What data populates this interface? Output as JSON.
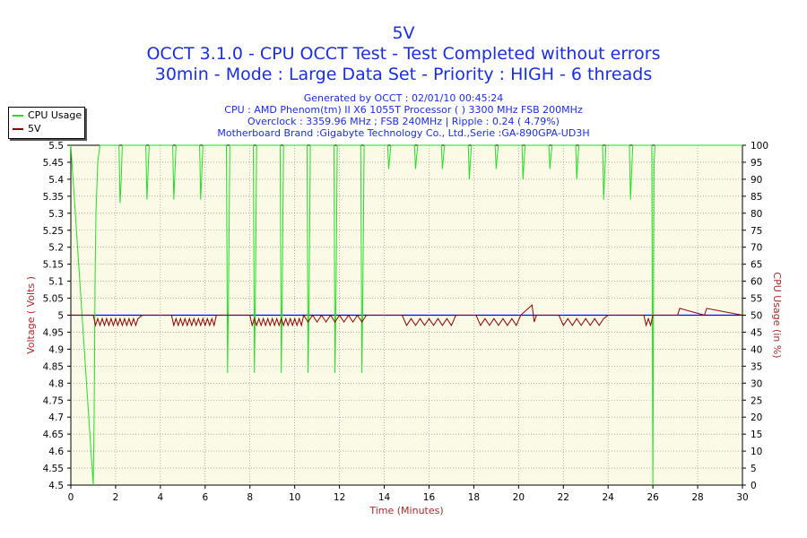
{
  "header": {
    "title": "5V",
    "line2": "OCCT 3.1.0 - CPU OCCT Test - Test Completed without errors",
    "line3": "30min - Mode : Large Data Set - Priority : HIGH - 6 threads",
    "generated": "Generated by OCCT : 02/01/10 00:45:24",
    "cpu": "CPU : AMD Phenom(tm) II X6 1055T Processor (  ) 3300 MHz FSB 200MHz",
    "overclock": "Overclock : 3359.96 MHz ; FSB 240MHz | Ripple : 0.24 ( 4.79%)",
    "motherboard": "Motherboard Brand :Gigabyte Technology Co., Ltd.,Serie :GA-890GPA-UD3H"
  },
  "legend": [
    {
      "label": "CPU Usage",
      "color": "#22dd22"
    },
    {
      "label": "5V",
      "color": "#8b0000"
    }
  ],
  "chart_data": {
    "type": "line",
    "xlabel": "Time (Minutes)",
    "ylabel": "Voltage ( Volts )",
    "y2label": "CPU Usage (in %)",
    "xlim": [
      0,
      30
    ],
    "ylim": [
      4.5,
      5.5
    ],
    "y2lim": [
      0,
      100
    ],
    "x_ticks": [
      "0",
      "2",
      "4",
      "6",
      "8",
      "10",
      "12",
      "14",
      "16",
      "18",
      "20",
      "22",
      "24",
      "26",
      "28",
      "30"
    ],
    "y_ticks": [
      "4.5",
      "4.55",
      "4.6",
      "4.65",
      "4.7",
      "4.75",
      "4.8",
      "4.85",
      "4.9",
      "4.95",
      "5",
      "5.05",
      "5.1",
      "5.15",
      "5.2",
      "5.25",
      "5.3",
      "5.35",
      "5.4",
      "5.45",
      "5.5"
    ],
    "y2_ticks": [
      "0",
      "5",
      "10",
      "15",
      "20",
      "25",
      "30",
      "35",
      "40",
      "45",
      "50",
      "55",
      "60",
      "65",
      "70",
      "75",
      "80",
      "85",
      "90",
      "95",
      "100"
    ],
    "grid": true,
    "legend_position": "top-left",
    "colors": {
      "background": "#fafae6",
      "grid": "#808080",
      "cpu": "#22dd22",
      "voltage": "#8b0000",
      "voltage_line": "#0000ff",
      "title": "#1a2ee0",
      "axis_label": "#a52a2a"
    },
    "series": [
      {
        "name": "CPU Usage",
        "axis": "right",
        "x": [
          0,
          1.0,
          1.04,
          1.08,
          1.12,
          1.2,
          1.3,
          1.4,
          2.15,
          2.2,
          2.25,
          2.3,
          2.35,
          3.35,
          3.4,
          3.45,
          3.5,
          4.55,
          4.6,
          4.65,
          4.7,
          5.75,
          5.8,
          5.85,
          5.9,
          6.95,
          7.0,
          7.05,
          7.1,
          8.15,
          8.2,
          8.25,
          8.3,
          9.35,
          9.4,
          9.45,
          9.5,
          10.55,
          10.6,
          10.65,
          10.7,
          11.75,
          11.8,
          11.85,
          11.9,
          12.95,
          13.0,
          13.05,
          13.1,
          14.15,
          14.2,
          14.25,
          14.3,
          15.35,
          15.4,
          15.45,
          15.5,
          16.55,
          16.6,
          16.65,
          16.7,
          17.75,
          17.8,
          17.85,
          17.9,
          18.95,
          19.0,
          19.05,
          19.1,
          20.15,
          20.2,
          20.25,
          20.3,
          21.35,
          21.4,
          21.45,
          21.5,
          22.55,
          22.6,
          22.65,
          22.7,
          23.75,
          23.8,
          23.85,
          23.9,
          24.95,
          25.0,
          25.05,
          25.1,
          25.95,
          26.0,
          26.05,
          26.1,
          26.3,
          30
        ],
        "values": [
          100,
          0,
          20,
          60,
          80,
          95,
          100,
          100,
          100,
          83,
          90,
          100,
          100,
          100,
          84,
          92,
          100,
          100,
          84,
          92,
          100,
          100,
          84,
          92,
          100,
          100,
          33,
          60,
          100,
          100,
          33,
          60,
          100,
          100,
          33,
          60,
          100,
          100,
          33,
          60,
          100,
          100,
          33,
          60,
          100,
          100,
          33,
          60,
          100,
          100,
          93,
          97,
          100,
          100,
          93,
          97,
          100,
          100,
          93,
          97,
          100,
          100,
          90,
          96,
          100,
          100,
          93,
          97,
          100,
          100,
          90,
          96,
          100,
          100,
          93,
          97,
          100,
          100,
          90,
          96,
          100,
          100,
          84,
          92,
          100,
          100,
          84,
          92,
          100,
          100,
          0,
          95,
          100,
          100,
          100
        ]
      },
      {
        "name": "5V",
        "axis": "left",
        "x": [
          0,
          1.0,
          1.1,
          1.2,
          1.3,
          1.4,
          1.5,
          1.6,
          1.7,
          1.8,
          1.9,
          2.0,
          2.1,
          2.2,
          2.3,
          2.4,
          2.5,
          2.6,
          2.7,
          2.8,
          2.9,
          3.0,
          3.2,
          4.5,
          4.6,
          4.7,
          4.8,
          4.9,
          5.0,
          5.1,
          5.2,
          5.3,
          5.4,
          5.5,
          5.6,
          5.7,
          5.8,
          5.9,
          6.0,
          6.1,
          6.2,
          6.3,
          6.4,
          6.5,
          8.0,
          8.1,
          8.2,
          8.3,
          8.4,
          8.5,
          8.6,
          8.7,
          8.8,
          8.9,
          9.0,
          9.1,
          9.2,
          9.3,
          9.4,
          9.5,
          9.6,
          9.7,
          9.8,
          9.9,
          10.0,
          10.1,
          10.2,
          10.3,
          10.4,
          10.6,
          10.8,
          11.0,
          11.2,
          11.4,
          11.6,
          11.8,
          12.0,
          12.2,
          12.4,
          12.6,
          12.8,
          13.0,
          13.2,
          14.8,
          15.0,
          15.2,
          15.4,
          15.6,
          15.8,
          16.0,
          16.2,
          16.4,
          16.6,
          16.8,
          17.0,
          17.2,
          18.1,
          18.3,
          18.5,
          18.7,
          18.9,
          19.1,
          19.3,
          19.5,
          19.7,
          19.9,
          20.1,
          20.6,
          20.7,
          20.8,
          21.8,
          22.0,
          22.2,
          22.4,
          22.6,
          22.8,
          23.0,
          23.2,
          23.4,
          23.6,
          23.8,
          24.0,
          25.6,
          25.7,
          25.8,
          25.9,
          26.0,
          27.1,
          27.2,
          28.3,
          28.4,
          30
        ],
        "values": [
          5.0,
          5.0,
          4.97,
          4.99,
          4.97,
          4.99,
          4.97,
          4.99,
          4.97,
          4.99,
          4.97,
          4.99,
          4.97,
          4.99,
          4.97,
          4.99,
          4.97,
          4.99,
          4.97,
          4.99,
          4.97,
          4.99,
          5.0,
          5.0,
          4.97,
          4.99,
          4.97,
          4.99,
          4.97,
          4.99,
          4.97,
          4.99,
          4.97,
          4.99,
          4.97,
          4.99,
          4.97,
          4.99,
          4.97,
          4.99,
          4.97,
          4.99,
          4.97,
          5.0,
          5.0,
          4.97,
          4.99,
          4.97,
          4.99,
          4.97,
          4.99,
          4.97,
          4.99,
          4.97,
          4.99,
          4.97,
          4.99,
          4.97,
          4.99,
          4.97,
          4.99,
          4.97,
          4.99,
          4.97,
          4.99,
          4.97,
          4.99,
          4.97,
          5.0,
          4.98,
          5.0,
          4.98,
          5.0,
          4.98,
          5.0,
          4.98,
          5.0,
          4.98,
          5.0,
          4.98,
          5.0,
          4.98,
          5.0,
          5.0,
          4.97,
          4.99,
          4.97,
          4.99,
          4.97,
          4.99,
          4.97,
          4.99,
          4.97,
          4.99,
          4.97,
          5.0,
          5.0,
          4.97,
          4.99,
          4.97,
          4.99,
          4.97,
          4.99,
          4.97,
          4.99,
          4.97,
          5.0,
          5.03,
          4.98,
          5.0,
          5.0,
          4.97,
          4.99,
          4.97,
          4.99,
          4.97,
          4.99,
          4.97,
          4.99,
          4.97,
          4.99,
          5.0,
          5.0,
          4.97,
          4.99,
          4.97,
          5.0,
          5.0,
          5.02,
          5.0,
          5.02,
          5.0
        ]
      }
    ]
  }
}
